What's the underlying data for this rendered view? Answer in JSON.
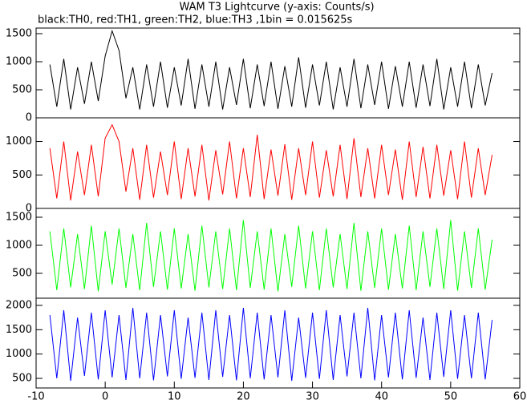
{
  "chart_data": [
    {
      "type": "line",
      "title": "WAM T3 Lightcurve (y-axis: Counts/s)",
      "subtitle": "black:TH0, red:TH1, green:TH2, blue:TH3 ,1bin = 0.015625s",
      "x": [
        -8,
        -7,
        -6,
        -5,
        -4,
        -3,
        -2,
        -1,
        0,
        1,
        2,
        3,
        4,
        5,
        6,
        7,
        8,
        9,
        10,
        11,
        12,
        13,
        14,
        15,
        16,
        17,
        18,
        19,
        20,
        21,
        22,
        23,
        24,
        25,
        26,
        27,
        28,
        29,
        30,
        31,
        32,
        33,
        34,
        35,
        36,
        37,
        38,
        39,
        40,
        41,
        42,
        43,
        44,
        45,
        46,
        47,
        48,
        49,
        50,
        51,
        52,
        53,
        54,
        55,
        56
      ],
      "series": [
        {
          "name": "TH0",
          "color": "#000000",
          "values": [
            950,
            200,
            1050,
            150,
            900,
            250,
            1000,
            300,
            1100,
            1550,
            1200,
            350,
            900,
            150,
            950,
            200,
            1000,
            180,
            900,
            220,
            1050,
            160,
            950,
            200,
            1000,
            150,
            900,
            230,
            1050,
            170,
            950,
            210,
            1000,
            160,
            920,
            200,
            1080,
            180,
            950,
            220,
            1000,
            150,
            900,
            200,
            1050,
            170,
            950,
            230,
            1000,
            160,
            920,
            200,
            1000,
            180,
            950,
            210,
            1050,
            150,
            900,
            200,
            1000,
            170,
            950,
            220,
            800
          ]
        }
      ],
      "xlim": [
        -10,
        60
      ],
      "ylim": [
        0,
        1600
      ],
      "yticks": [
        0,
        500,
        1000,
        1500
      ]
    },
    {
      "type": "line",
      "x": [
        -8,
        -7,
        -6,
        -5,
        -4,
        -3,
        -2,
        -1,
        0,
        1,
        2,
        3,
        4,
        5,
        6,
        7,
        8,
        9,
        10,
        11,
        12,
        13,
        14,
        15,
        16,
        17,
        18,
        19,
        20,
        21,
        22,
        23,
        24,
        25,
        26,
        27,
        28,
        29,
        30,
        31,
        32,
        33,
        34,
        35,
        36,
        37,
        38,
        39,
        40,
        41,
        42,
        43,
        44,
        45,
        46,
        47,
        48,
        49,
        50,
        51,
        52,
        53,
        54,
        55,
        56
      ],
      "series": [
        {
          "name": "TH1",
          "color": "#ff0000",
          "values": [
            900,
            150,
            1000,
            120,
            850,
            200,
            950,
            180,
            1050,
            1250,
            1000,
            250,
            900,
            130,
            950,
            160,
            850,
            200,
            1000,
            140,
            900,
            180,
            950,
            120,
            870,
            210,
            1000,
            150,
            900,
            170,
            1100,
            140,
            880,
            190,
            960,
            130,
            900,
            200,
            1000,
            160,
            870,
            180,
            950,
            140,
            1050,
            170,
            900,
            150,
            950,
            200,
            880,
            130,
            1000,
            170,
            920,
            150,
            950,
            190,
            870,
            140,
            1000,
            160,
            900,
            200,
            800
          ]
        }
      ],
      "xlim": [
        -10,
        60
      ],
      "ylim": [
        0,
        1354
      ],
      "yticks": [
        0,
        500,
        1000
      ]
    },
    {
      "type": "line",
      "x": [
        -8,
        -7,
        -6,
        -5,
        -4,
        -3,
        -2,
        -1,
        0,
        1,
        2,
        3,
        4,
        5,
        6,
        7,
        8,
        9,
        10,
        11,
        12,
        13,
        14,
        15,
        16,
        17,
        18,
        19,
        20,
        21,
        22,
        23,
        24,
        25,
        26,
        27,
        28,
        29,
        30,
        31,
        32,
        33,
        34,
        35,
        36,
        37,
        38,
        39,
        40,
        41,
        42,
        43,
        44,
        45,
        46,
        47,
        48,
        49,
        50,
        51,
        52,
        53,
        54,
        55,
        56
      ],
      "series": [
        {
          "name": "TH2",
          "color": "#00ff00",
          "values": [
            1250,
            200,
            1300,
            250,
            1200,
            220,
            1350,
            180,
            1250,
            300,
            1300,
            240,
            1200,
            200,
            1400,
            260,
            1250,
            210,
            1300,
            230,
            1200,
            190,
            1350,
            250,
            1250,
            220,
            1300,
            200,
            1450,
            240,
            1250,
            210,
            1300,
            180,
            1200,
            260,
            1350,
            230,
            1250,
            200,
            1300,
            250,
            1200,
            220,
            1400,
            190,
            1250,
            240,
            1300,
            210,
            1200,
            230,
            1350,
            200,
            1250,
            260,
            1300,
            220,
            1450,
            190,
            1250,
            240,
            1300,
            210,
            1100
          ]
        }
      ],
      "xlim": [
        -10,
        60
      ],
      "ylim": [
        57,
        1657
      ],
      "yticks": [
        500,
        1000,
        1500
      ]
    },
    {
      "type": "line",
      "x": [
        -8,
        -7,
        -6,
        -5,
        -4,
        -3,
        -2,
        -1,
        0,
        1,
        2,
        3,
        4,
        5,
        6,
        7,
        8,
        9,
        10,
        11,
        12,
        13,
        14,
        15,
        16,
        17,
        18,
        19,
        20,
        21,
        22,
        23,
        24,
        25,
        26,
        27,
        28,
        29,
        30,
        31,
        32,
        33,
        34,
        35,
        36,
        37,
        38,
        39,
        40,
        41,
        42,
        43,
        44,
        45,
        46,
        47,
        48,
        49,
        50,
        51,
        52,
        53,
        54,
        55,
        56
      ],
      "series": [
        {
          "name": "TH3",
          "color": "#0000ff",
          "values": [
            1800,
            500,
            1900,
            450,
            1750,
            550,
            1850,
            480,
            1900,
            520,
            1800,
            470,
            1950,
            500,
            1850,
            460,
            1800,
            540,
            1900,
            490,
            1750,
            510,
            1850,
            470,
            1900,
            530,
            1800,
            460,
            1950,
            500,
            1850,
            480,
            1800,
            520,
            1900,
            450,
            1750,
            510,
            1850,
            490,
            1900,
            470,
            1800,
            540,
            1850,
            500,
            1950,
            460,
            1800,
            520,
            1850,
            480,
            1900,
            510,
            1750,
            470,
            1850,
            530,
            1900,
            490,
            1800,
            500,
            1850,
            480,
            1700
          ]
        }
      ],
      "xlim": [
        -10,
        60
      ],
      "ylim": [
        303,
        2148
      ],
      "yticks": [
        500,
        1000,
        1500,
        2000
      ],
      "xticks": [
        -10,
        0,
        10,
        20,
        30,
        40,
        50,
        60
      ]
    }
  ]
}
